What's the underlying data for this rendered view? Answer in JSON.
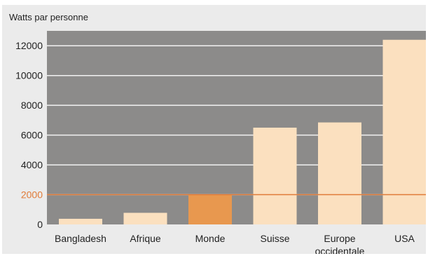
{
  "chart_data": {
    "type": "bar",
    "ylabel": "Watts par personne",
    "categories": [
      "Bangladesh",
      "Afrique",
      "Monde",
      "Suisse",
      [
        "Europe",
        "occidentale"
      ],
      "USA"
    ],
    "values": [
      380,
      780,
      2000,
      6500,
      6850,
      12400
    ],
    "highlight_index": 2,
    "reference_line": {
      "value": 2000
    },
    "ylim": [
      0,
      13000
    ],
    "yticks": [
      0,
      2000,
      4000,
      6000,
      8000,
      10000,
      12000
    ],
    "grid": true,
    "colors": {
      "plot_background": "#8c8b8a",
      "frame_background": "#ebebeb",
      "bar": "#fbe0bf",
      "bar_highlight": "#e8984f",
      "reference_line": "#e07b39",
      "grid": "#f2f2f2"
    }
  }
}
